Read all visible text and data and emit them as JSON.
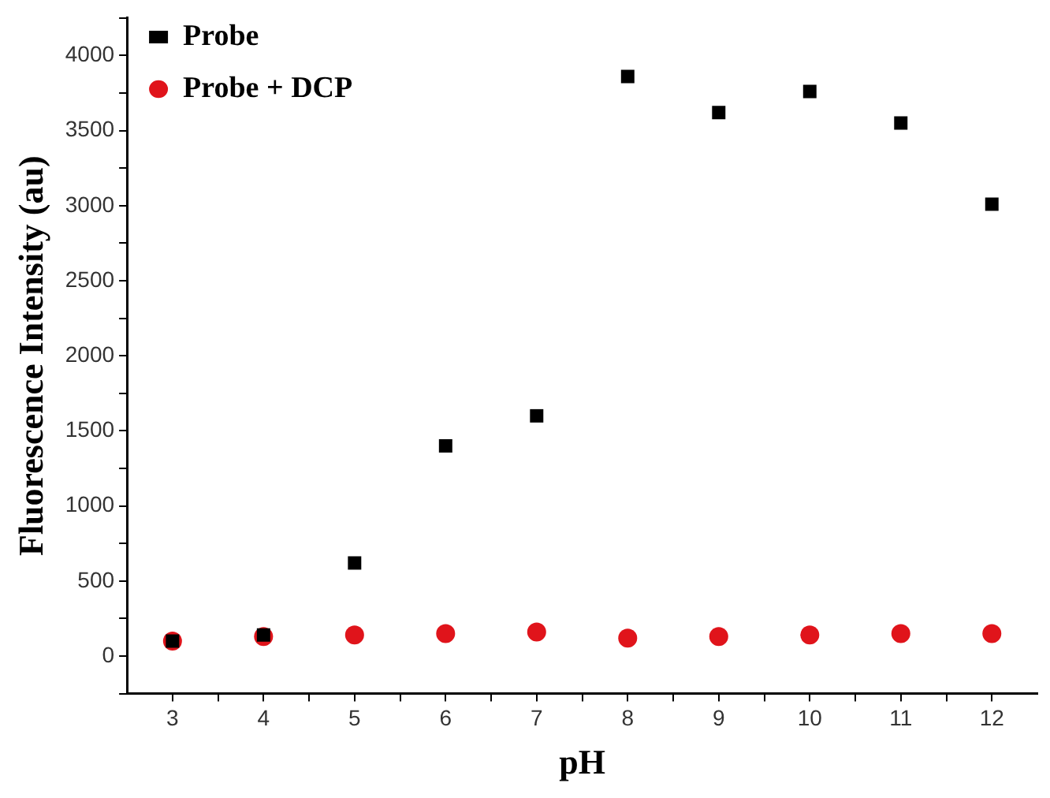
{
  "chart_data": {
    "type": "scatter",
    "xlabel": "pH",
    "ylabel": "Fluorescence Intensity (au)",
    "x": [
      3,
      4,
      5,
      6,
      7,
      8,
      9,
      10,
      11,
      12
    ],
    "series": [
      {
        "name": "Probe",
        "color": "#000000",
        "marker": "square",
        "values": [
          100,
          140,
          620,
          1400,
          1600,
          3860,
          3620,
          3760,
          3550,
          3010
        ]
      },
      {
        "name": "Probe + DCP",
        "color": "#e0141b",
        "marker": "circle",
        "values": [
          100,
          130,
          140,
          150,
          160,
          120,
          130,
          140,
          150,
          150
        ]
      }
    ],
    "xlim": [
      2.5,
      12.5
    ],
    "xticks": [
      3,
      {
        "value": 3.5,
        "label": null
      },
      4,
      {
        "value": 4.5,
        "label": null
      },
      5,
      {
        "value": 5.5,
        "label": null
      },
      6,
      {
        "value": 6.5,
        "label": null
      },
      7,
      {
        "value": 7.5,
        "label": null
      },
      8,
      {
        "value": 8.5,
        "label": null
      },
      9,
      {
        "value": 9.5,
        "label": null
      },
      10,
      {
        "value": 10.5,
        "label": null
      },
      11,
      {
        "value": 11.5,
        "label": null
      },
      12
    ],
    "ylim": [
      -250,
      4250
    ],
    "yticks": [
      {
        "value": -250,
        "label": null
      },
      0,
      {
        "value": 250,
        "label": null
      },
      500,
      {
        "value": 750,
        "label": null
      },
      1000,
      {
        "value": 1250,
        "label": null
      },
      1500,
      {
        "value": 1750,
        "label": null
      },
      2000,
      {
        "value": 2250,
        "label": null
      },
      2500,
      {
        "value": 2750,
        "label": null
      },
      3000,
      {
        "value": 3250,
        "label": null
      },
      3500,
      {
        "value": 3750,
        "label": null
      },
      4000,
      {
        "value": 4250,
        "label": null
      }
    ],
    "grid": false,
    "legend": "top left"
  }
}
